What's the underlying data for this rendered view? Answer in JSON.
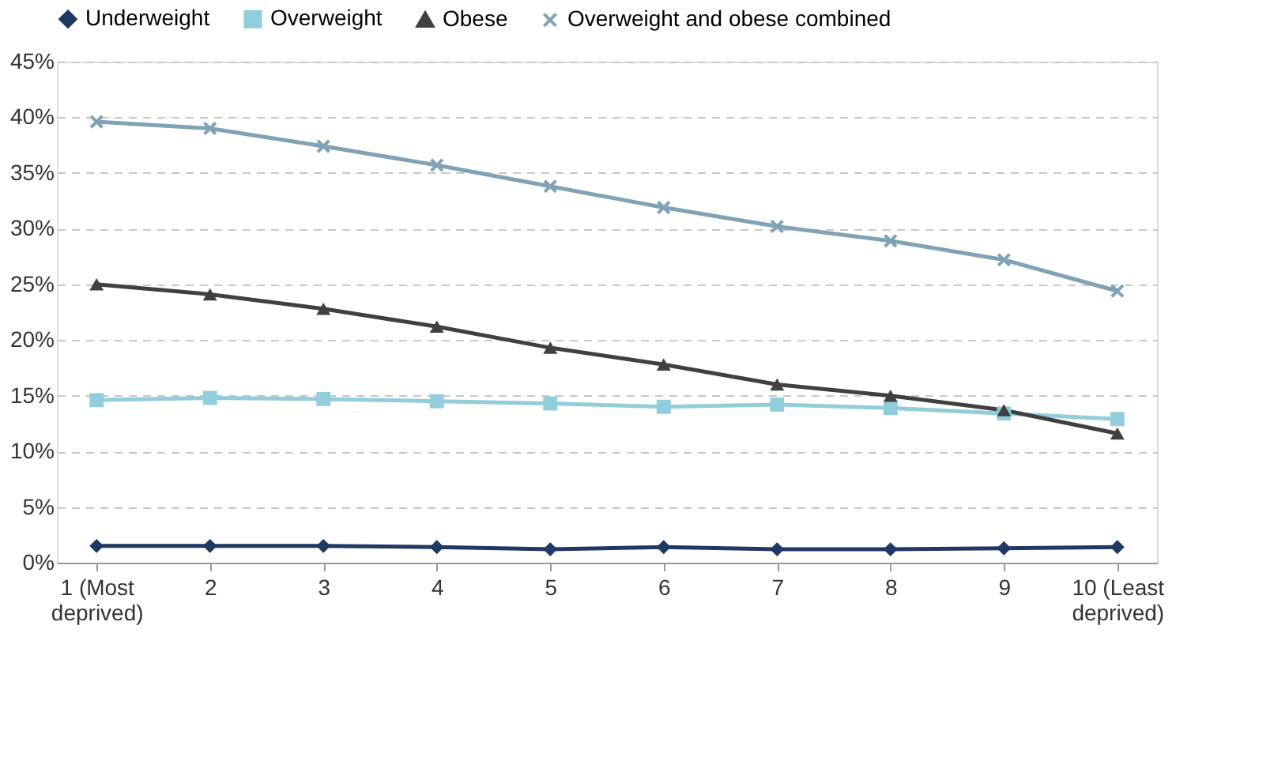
{
  "chart_data": {
    "type": "line",
    "categories": [
      "1  (Most\ndeprived)",
      "2",
      "3",
      "4",
      "5",
      "6",
      "7",
      "8",
      "9",
      "10 (Least\ndeprived)"
    ],
    "series": [
      {
        "name": "Underweight",
        "color": "#1f3864",
        "marker": "diamond",
        "values": [
          1.5,
          1.5,
          1.5,
          1.4,
          1.2,
          1.4,
          1.2,
          1.2,
          1.3,
          1.4
        ]
      },
      {
        "name": "Overweight",
        "color": "#92cddc",
        "marker": "square",
        "values": [
          14.6,
          14.8,
          14.7,
          14.5,
          14.3,
          14.0,
          14.2,
          13.9,
          13.4,
          12.9
        ]
      },
      {
        "name": "Obese",
        "color": "#404040",
        "marker": "triangle",
        "values": [
          25.0,
          24.1,
          22.8,
          21.2,
          19.3,
          17.8,
          16.0,
          15.0,
          13.7,
          11.6
        ]
      },
      {
        "name": "Overweight and obese combined",
        "color": "#7fa3b5",
        "marker": "cross",
        "values": [
          39.6,
          39.0,
          37.4,
          35.7,
          33.8,
          31.9,
          30.2,
          28.9,
          27.2,
          24.4
        ]
      }
    ],
    "ylim": [
      0,
      45
    ],
    "yticks": [
      {
        "value": 0,
        "label": "0%"
      },
      {
        "value": 5,
        "label": "5%"
      },
      {
        "value": 10,
        "label": "10%"
      },
      {
        "value": 15,
        "label": "15%"
      },
      {
        "value": 20,
        "label": "20%"
      },
      {
        "value": 25,
        "label": "25%"
      },
      {
        "value": 30,
        "label": "30%"
      },
      {
        "value": 35,
        "label": "35%"
      },
      {
        "value": 40,
        "label": "40%"
      },
      {
        "value": 45,
        "label": "45%"
      }
    ],
    "grid": "y",
    "legend": "top",
    "line_style": "solid"
  }
}
